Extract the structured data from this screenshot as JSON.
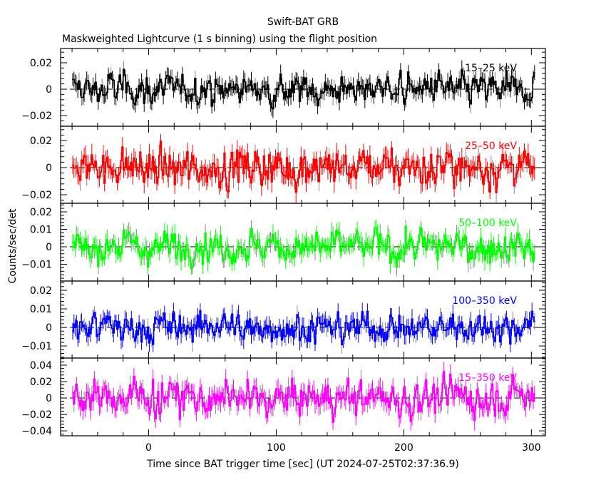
{
  "chart_data": {
    "type": "line",
    "title": "Swift-BAT GRB",
    "subtitle": "Maskweighted Lightcurve (1 s binning) using the flight position",
    "xlabel": "Time since BAT trigger time [sec] (UT 2024-07-25T02:37:36.9)",
    "ylabel": "Counts/sec/det",
    "xlim": [
      -69,
      311
    ],
    "x_ticks": [
      0,
      100,
      200,
      300
    ],
    "x_tick_labels": [
      "0",
      "100",
      "200",
      "300"
    ],
    "data_time_range": [
      -60,
      302
    ],
    "binning_sec": 1,
    "panels": [
      {
        "name": "15-25 keV",
        "label": "15–25 keV",
        "color": "#000000",
        "ylim": [
          -0.0281,
          0.0308
        ],
        "yticks": [
          -0.02,
          0,
          0.02
        ],
        "ytick_labels": [
          "−0.02",
          "0",
          "0.02"
        ],
        "noise_sigma": 0.0065,
        "error": 0.006
      },
      {
        "name": "25-50 keV",
        "label": "25–50 keV",
        "color": "#ff0000",
        "ylim": [
          -0.0263,
          0.0305
        ],
        "yticks": [
          -0.02,
          0,
          0.02
        ],
        "ytick_labels": [
          "−0.02",
          "0",
          "0.02"
        ],
        "noise_sigma": 0.0075,
        "error": 0.007
      },
      {
        "name": "50-100 keV",
        "label": "50–100 keV",
        "color": "#00ff00",
        "ylim": [
          -0.0196,
          0.0249
        ],
        "yticks": [
          -0.01,
          0,
          0.01,
          0.02
        ],
        "ytick_labels": [
          "−0.01",
          "0",
          "0.01",
          "0.02"
        ],
        "noise_sigma": 0.005,
        "error": 0.005
      },
      {
        "name": "100-350 keV",
        "label": "100–350 keV",
        "color": "#0000ff",
        "ylim": [
          -0.0165,
          0.025
        ],
        "yticks": [
          -0.01,
          0,
          0.01,
          0.02
        ],
        "ytick_labels": [
          "−0.01",
          "0",
          "0.01",
          "0.02"
        ],
        "noise_sigma": 0.0045,
        "error": 0.0045
      },
      {
        "name": "15-350 keV",
        "label": "15–350 keV",
        "color": "#ff00ff",
        "ylim": [
          -0.046,
          0.0487
        ],
        "yticks": [
          -0.04,
          -0.02,
          0,
          0.02,
          0.04
        ],
        "ytick_labels": [
          "−0.04",
          "−0.02",
          "0",
          "0.02",
          "0.04"
        ],
        "noise_sigma": 0.012,
        "error": 0.011
      }
    ]
  }
}
